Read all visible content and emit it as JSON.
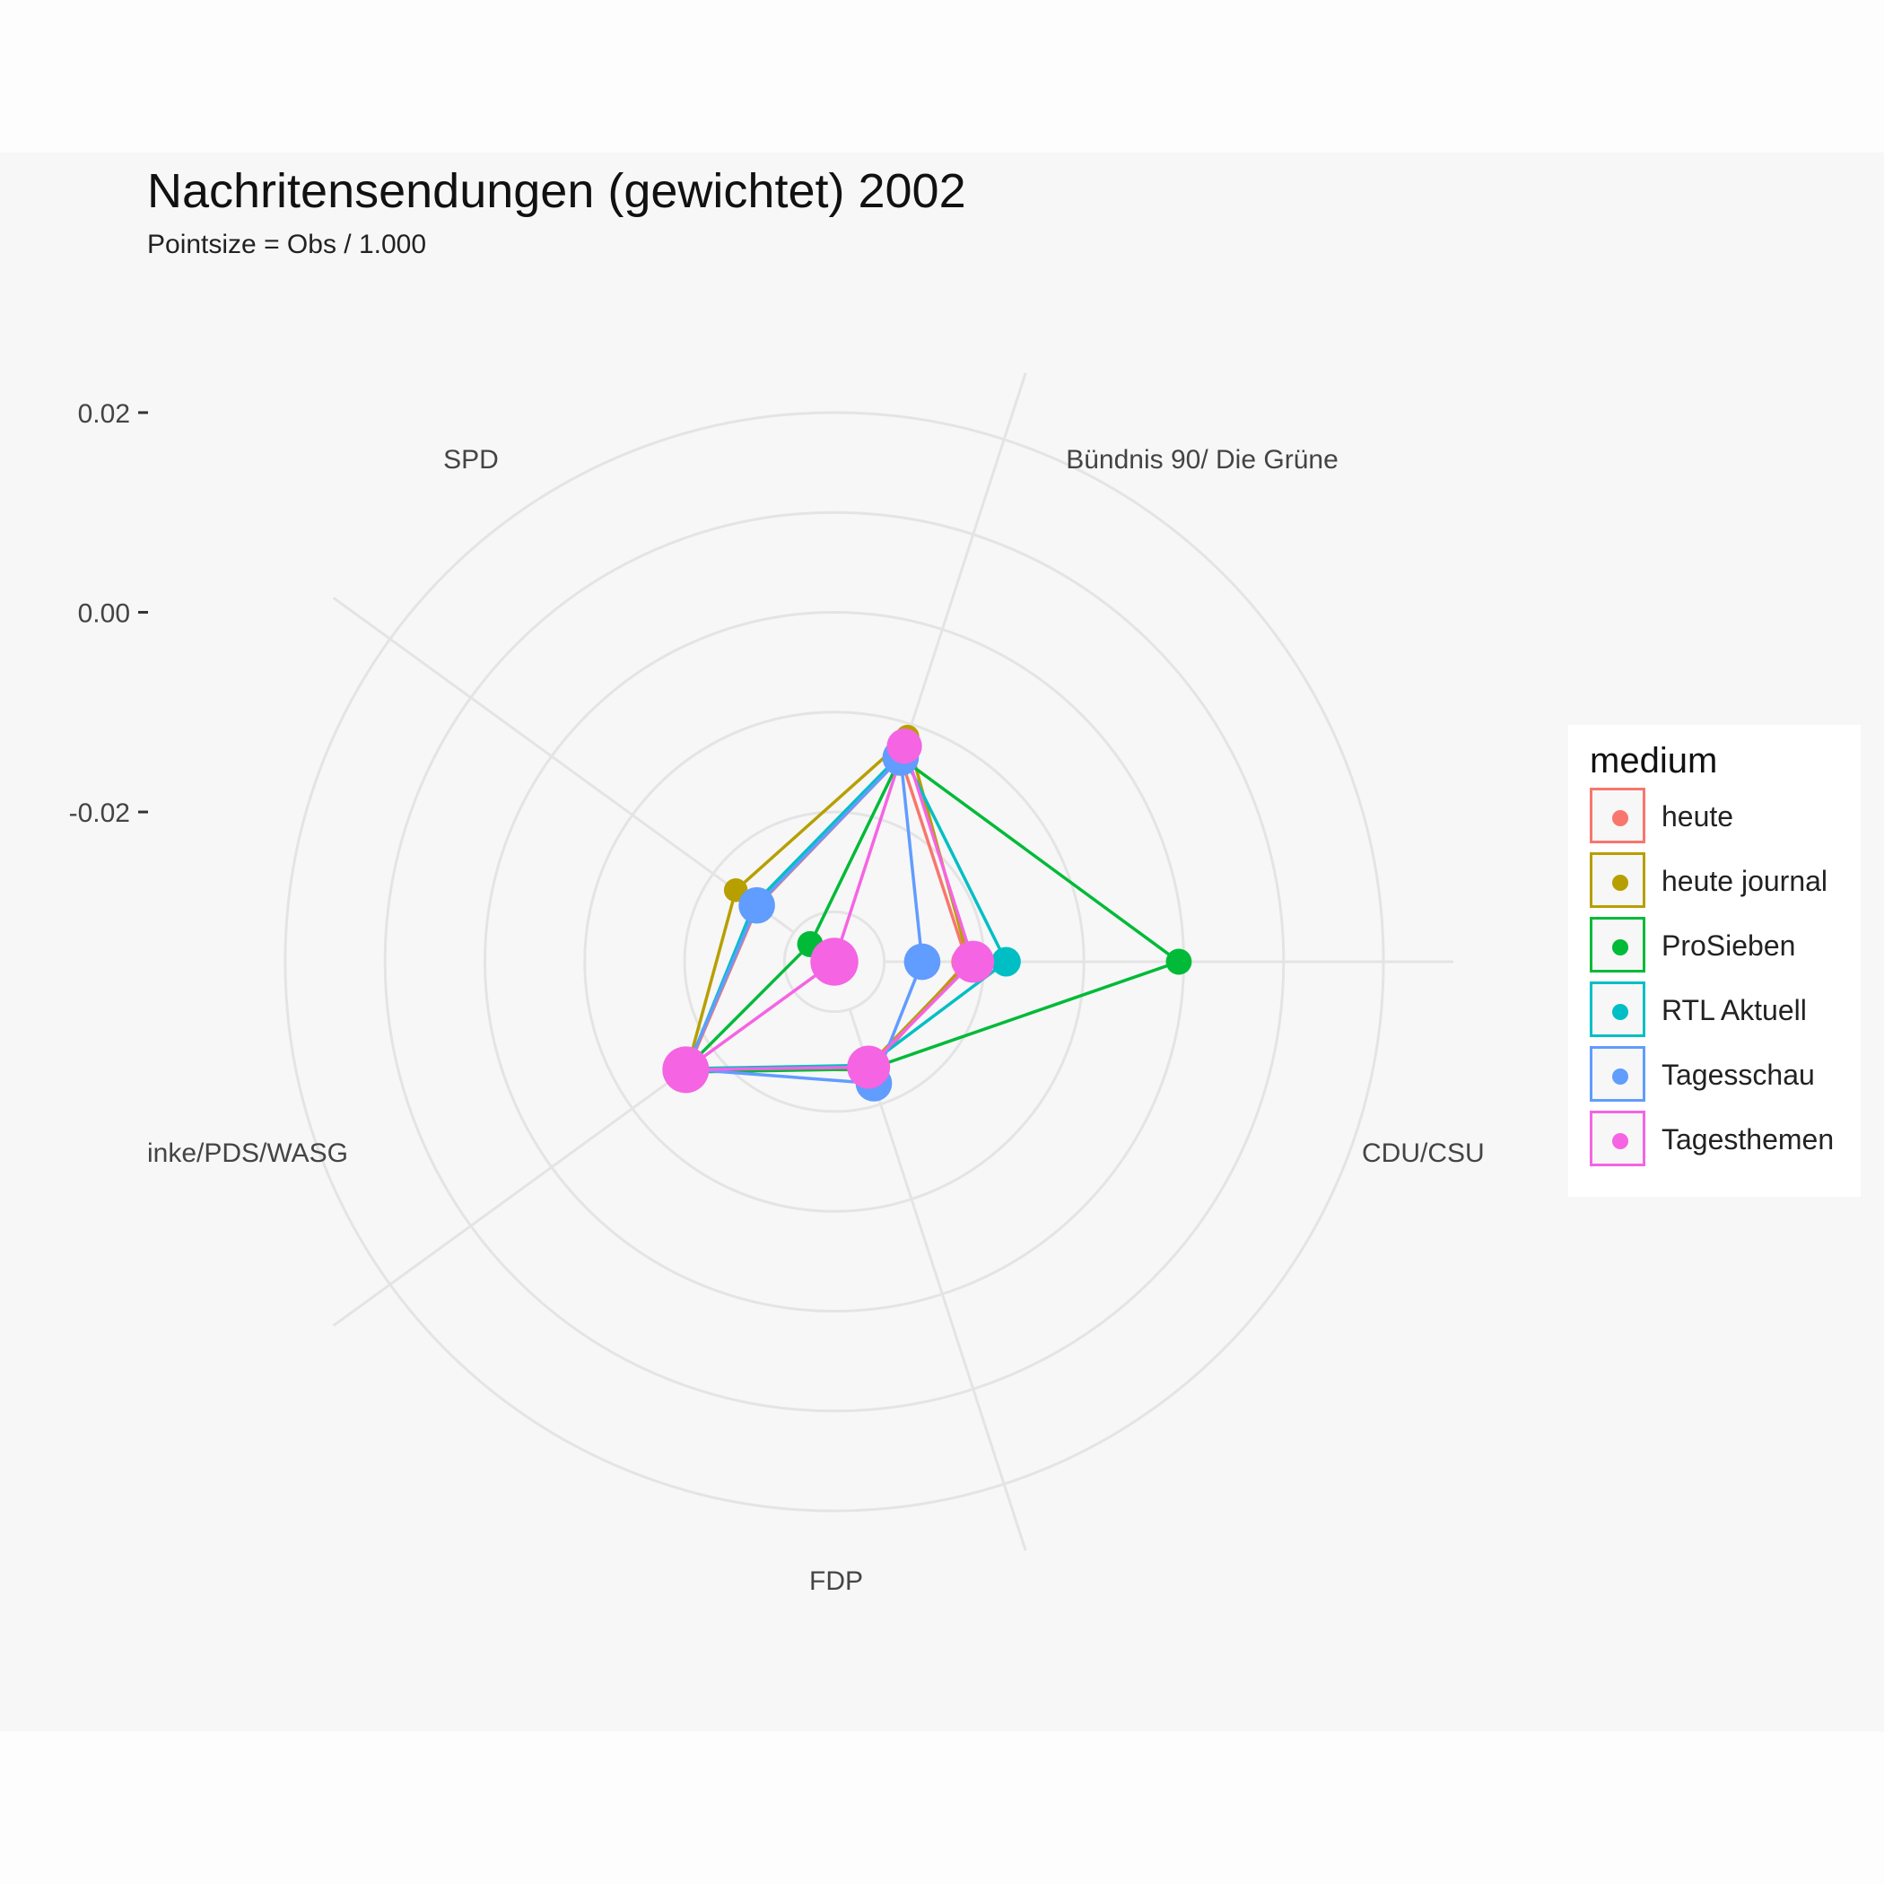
{
  "title": "Nachritensendungen (gewichtet) 2002",
  "subtitle": "Pointsize = Obs / 1.000",
  "chart_data": {
    "type": "radar",
    "title": "Nachritensendungen (gewichtet) 2002",
    "subtitle": "Pointsize = Obs / 1.000",
    "axes": [
      "SPD",
      "Bündnis 90/ Die Grüne",
      "CDU/CSU",
      "FDP",
      "inke/PDS/WASG"
    ],
    "radial_ticks": [
      {
        "value": -0.02,
        "label": "-0.02"
      },
      {
        "value": 0.0,
        "label": "0.00"
      },
      {
        "value": 0.02,
        "label": "0.02"
      }
    ],
    "radial_range": [
      -0.035,
      0.027
    ],
    "grid": true,
    "legend": {
      "title": "medium",
      "position": "right"
    },
    "series": [
      {
        "name": "heute",
        "color": "#F8766D",
        "values": [
          -0.0255,
          -0.0135,
          -0.0217,
          -0.0236,
          -0.0169
        ],
        "sizes": [
          1.5,
          1.5,
          1.5,
          1.5,
          1.5
        ]
      },
      {
        "name": "heute journal",
        "color": "#B79F00",
        "values": [
          -0.0228,
          -0.0113,
          -0.0215,
          -0.024,
          -0.0168
        ],
        "sizes": [
          0.6,
          0.6,
          0.6,
          0.6,
          0.6
        ]
      },
      {
        "name": "ProSieben",
        "color": "#00BA38",
        "values": [
          -0.032,
          -0.0135,
          -0.0005,
          -0.0237,
          -0.0162
        ],
        "sizes": [
          0.8,
          0.8,
          0.8,
          0.8,
          0.8
        ]
      },
      {
        "name": "RTL Aktuell",
        "color": "#00BFC4",
        "values": [
          -0.0251,
          -0.013,
          -0.0178,
          -0.0241,
          -0.0168
        ],
        "sizes": [
          1.2,
          1.2,
          1.2,
          1.2,
          1.2
        ]
      },
      {
        "name": "Tagesschau",
        "color": "#619CFF",
        "values": [
          -0.0254,
          -0.0135,
          -0.0262,
          -0.0222,
          -0.0167
        ],
        "sizes": [
          2.2,
          2.2,
          2.2,
          2.2,
          2.2
        ]
      },
      {
        "name": "Tagesthemen",
        "color": "#F564E3",
        "values": [
          -0.035,
          -0.0123,
          -0.0211,
          -0.0239,
          -0.0166
        ],
        "sizes": [
          4.5,
          2.0,
          3.2,
          3.4,
          4.2
        ]
      }
    ]
  }
}
